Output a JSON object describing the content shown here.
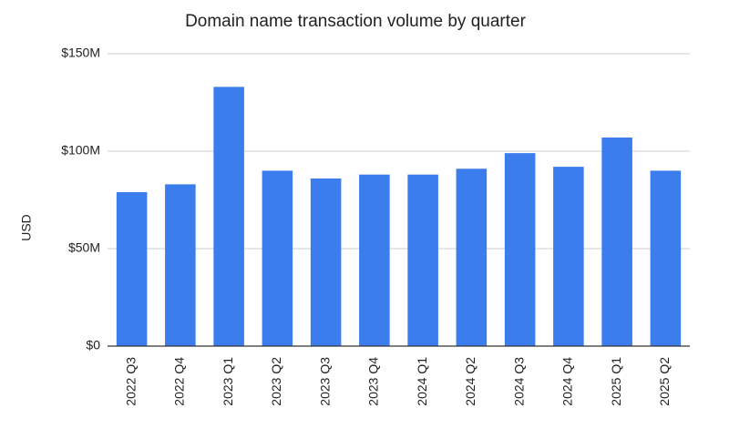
{
  "chart_data": {
    "type": "bar",
    "title": "Domain name transaction volume by quarter",
    "y_label": "USD",
    "categories": [
      "2022 Q3",
      "2022 Q4",
      "2023 Q1",
      "2023 Q2",
      "2023 Q3",
      "2023 Q4",
      "2024 Q1",
      "2024 Q2",
      "2024 Q3",
      "2024 Q4",
      "2025 Q1",
      "2025 Q2"
    ],
    "values": [
      79000000,
      83000000,
      133000000,
      90000000,
      86000000,
      88000000,
      88000000,
      91000000,
      99000000,
      92000000,
      107000000,
      90000000
    ],
    "color": "#3b7ded",
    "ylim": [
      0,
      150000000
    ],
    "yticks": [
      {
        "value": 0,
        "label": "$0"
      },
      {
        "value": 50000000,
        "label": "$50M"
      },
      {
        "value": 100000000,
        "label": "$100M"
      },
      {
        "value": 150000000,
        "label": "$150M"
      }
    ],
    "grid": true
  }
}
